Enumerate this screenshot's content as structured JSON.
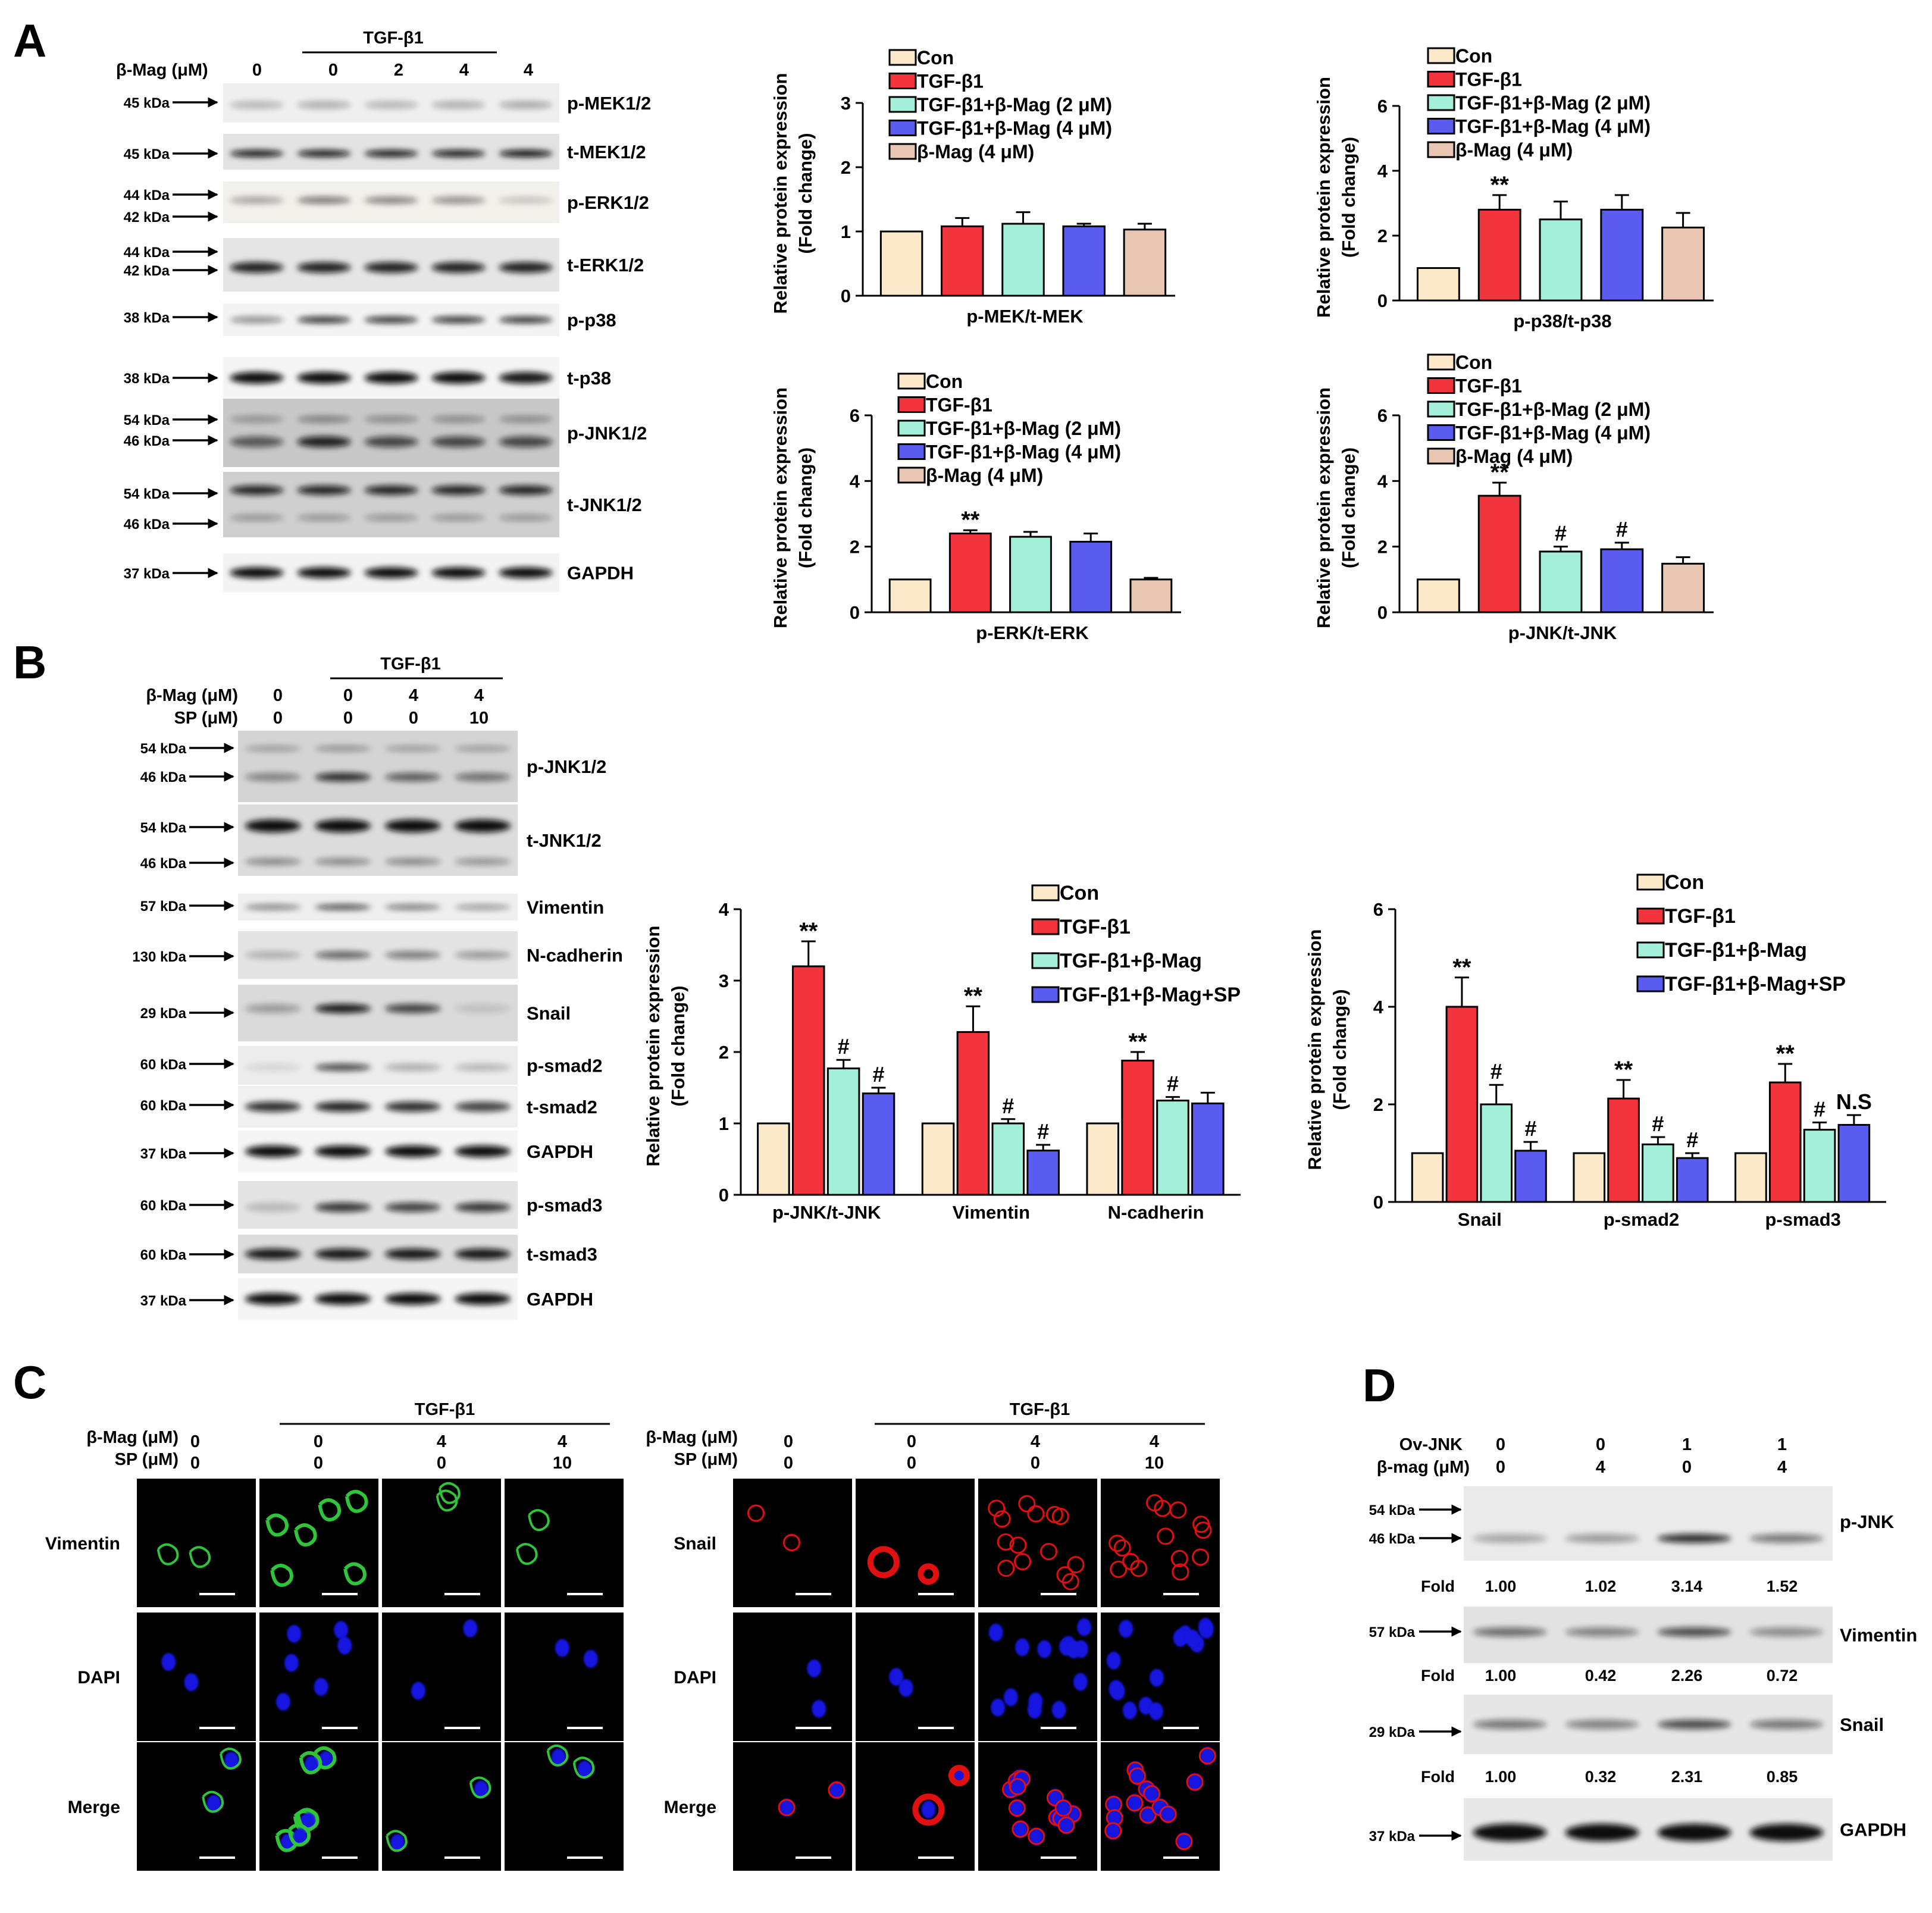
{
  "colors": {
    "con": "#FCE9C9",
    "tgf": "#F2343D",
    "mag2": "#A4EFD9",
    "mag4": "#5A5CF0",
    "magonly": "#E9C6B1",
    "merge_green": "#2FC43A",
    "blue": "#1414E0",
    "red": "#E01010"
  },
  "panel_labels": [
    "A",
    "B",
    "C",
    "D"
  ],
  "A": {
    "tgf_label": "TGF-β1",
    "mag_label": "β-Mag (μM)",
    "mag_values": [
      "0",
      "0",
      "2",
      "4",
      "4"
    ],
    "blots": [
      {
        "name": "p-MEK1/2",
        "kda": [
          "45 kDa"
        ]
      },
      {
        "name": "t-MEK1/2",
        "kda": [
          "45 kDa"
        ]
      },
      {
        "name": "p-ERK1/2",
        "kda": [
          "44 kDa",
          "42 kDa"
        ]
      },
      {
        "name": "t-ERK1/2",
        "kda": [
          "44 kDa",
          "42 kDa"
        ]
      },
      {
        "name": "p-p38",
        "kda": [
          "38 kDa"
        ]
      },
      {
        "name": "t-p38",
        "kda": [
          "38 kDa"
        ]
      },
      {
        "name": "p-JNK1/2",
        "kda": [
          "54 kDa",
          "46 kDa"
        ]
      },
      {
        "name": "t-JNK1/2",
        "kda": [
          "54 kDa",
          "46 kDa"
        ]
      },
      {
        "name": "GAPDH",
        "kda": [
          "37 kDa"
        ]
      }
    ],
    "legend": [
      "Con",
      "TGF-β1",
      "TGF-β1+β-Mag (2 μM)",
      "TGF-β1+β-Mag (4 μM)",
      "β-Mag (4 μM)"
    ],
    "ylabel": [
      "Relative protein expression",
      "(Fold change)"
    ]
  },
  "B": {
    "tgf_label": "TGF-β1",
    "mag_label": "β-Mag (μM)",
    "sp_label": "SP (μM)",
    "mag_values": [
      "0",
      "0",
      "4",
      "4"
    ],
    "sp_values": [
      "0",
      "0",
      "0",
      "10"
    ],
    "blots": [
      {
        "name": "p-JNK1/2",
        "kda": [
          "54 kDa",
          "46 kDa"
        ]
      },
      {
        "name": "t-JNK1/2",
        "kda": [
          "54 kDa",
          "46 kDa"
        ]
      },
      {
        "name": "Vimentin",
        "kda": [
          "57 kDa"
        ]
      },
      {
        "name": "N-cadherin",
        "kda": [
          "130 kDa"
        ]
      },
      {
        "name": "Snail",
        "kda": [
          "29 kDa"
        ]
      },
      {
        "name": "p-smad2",
        "kda": [
          "60 kDa"
        ]
      },
      {
        "name": "t-smad2",
        "kda": [
          "60 kDa"
        ]
      },
      {
        "name": "GAPDH",
        "kda": [
          "37 kDa"
        ]
      },
      {
        "name": "p-smad3",
        "kda": [
          "60 kDa"
        ]
      },
      {
        "name": "t-smad3",
        "kda": [
          "60 kDa"
        ]
      },
      {
        "name": "GAPDH",
        "kda": [
          "37 kDa"
        ]
      }
    ],
    "legend": [
      "Con",
      "TGF-β1",
      "TGF-β1+β-Mag",
      "TGF-β1+β-Mag+SP"
    ],
    "ylabel": [
      "Relative protein expression",
      "(Fold change)"
    ]
  },
  "C": {
    "tgf_label": "TGF-β1",
    "mag_label": "β-Mag (μM)",
    "sp_label": "SP (μM)",
    "mag_values": [
      "0",
      "0",
      "4",
      "4"
    ],
    "sp_values": [
      "0",
      "0",
      "0",
      "10"
    ],
    "rows_left": [
      "Vimentin",
      "DAPI",
      "Merge"
    ],
    "rows_right": [
      "Snail",
      "DAPI",
      "Merge"
    ]
  },
  "D": {
    "ov_label": "Ov-JNK",
    "mag_label": "β-mag (μM)",
    "ov_values": [
      "0",
      "0",
      "1",
      "1"
    ],
    "mag_values": [
      "0",
      "4",
      "0",
      "4"
    ],
    "fold_label": "Fold",
    "blots": [
      {
        "name": "p-JNK",
        "kda": [
          "54 kDa",
          "46 kDa"
        ],
        "fold": [
          "1.00",
          "1.02",
          "3.14",
          "1.52"
        ]
      },
      {
        "name": "Vimentin",
        "kda": [
          "57 kDa"
        ],
        "fold": [
          "1.00",
          "0.42",
          "2.26",
          "0.72"
        ]
      },
      {
        "name": "Snail",
        "kda": [
          "29 kDa"
        ],
        "fold": [
          "1.00",
          "0.32",
          "2.31",
          "0.85"
        ]
      },
      {
        "name": "GAPDH",
        "kda": [
          "37 kDa"
        ],
        "fold": []
      }
    ]
  },
  "chart_data": [
    {
      "id": "A1",
      "type": "bar",
      "xlabel": "p-MEK/t-MEK",
      "ylim": [
        0,
        3
      ],
      "yticks": [
        0,
        1,
        2,
        3
      ],
      "categories": [
        "Con",
        "TGF-β1",
        "TGF-β1+β-Mag (2 μM)",
        "TGF-β1+β-Mag (4 μM)",
        "β-Mag (4 μM)"
      ],
      "values": [
        1.0,
        1.08,
        1.12,
        1.08,
        1.03
      ],
      "errors": [
        0,
        0.13,
        0.18,
        0.04,
        0.09
      ],
      "annotations": [
        "",
        "",
        "",
        "",
        ""
      ]
    },
    {
      "id": "A2",
      "type": "bar",
      "xlabel": "p-p38/t-p38",
      "ylim": [
        0,
        6
      ],
      "yticks": [
        0,
        2,
        4,
        6
      ],
      "categories": [
        "Con",
        "TGF-β1",
        "TGF-β1+β-Mag (2 μM)",
        "TGF-β1+β-Mag (4 μM)",
        "β-Mag (4 μM)"
      ],
      "values": [
        1.0,
        2.8,
        2.5,
        2.8,
        2.25
      ],
      "errors": [
        0,
        0.45,
        0.55,
        0.45,
        0.45
      ],
      "annotations": [
        "",
        "**",
        "",
        "",
        ""
      ]
    },
    {
      "id": "A3",
      "type": "bar",
      "xlabel": "p-ERK/t-ERK",
      "ylim": [
        0,
        6
      ],
      "yticks": [
        0,
        2,
        4,
        6
      ],
      "categories": [
        "Con",
        "TGF-β1",
        "TGF-β1+β-Mag (2 μM)",
        "TGF-β1+β-Mag (4 μM)",
        "β-Mag (4 μM)"
      ],
      "values": [
        1.0,
        2.4,
        2.3,
        2.15,
        1.0
      ],
      "errors": [
        0,
        0.1,
        0.15,
        0.25,
        0.05
      ],
      "annotations": [
        "",
        "**",
        "",
        "",
        ""
      ]
    },
    {
      "id": "A4",
      "type": "bar",
      "xlabel": "p-JNK/t-JNK",
      "ylim": [
        0,
        6
      ],
      "yticks": [
        0,
        2,
        4,
        6
      ],
      "categories": [
        "Con",
        "TGF-β1",
        "TGF-β1+β-Mag (2 μM)",
        "TGF-β1+β-Mag (4 μM)",
        "β-Mag (4 μM)"
      ],
      "values": [
        1.0,
        3.55,
        1.85,
        1.92,
        1.48
      ],
      "errors": [
        0,
        0.4,
        0.15,
        0.2,
        0.2
      ],
      "annotations": [
        "",
        "**",
        "#",
        "#",
        ""
      ]
    },
    {
      "id": "B1",
      "type": "bar",
      "ylim": [
        0,
        4
      ],
      "yticks": [
        0,
        1,
        2,
        3,
        4
      ],
      "categories": [
        "p-JNK/t-JNK",
        "Vimentin",
        "N-cadherin"
      ],
      "series": [
        {
          "name": "Con",
          "values": [
            1.0,
            1.0,
            1.0
          ],
          "errors": [
            0,
            0,
            0
          ],
          "annotations": [
            "",
            "",
            ""
          ]
        },
        {
          "name": "TGF-β1",
          "values": [
            3.2,
            2.28,
            1.88
          ],
          "errors": [
            0.35,
            0.36,
            0.12
          ],
          "annotations": [
            "**",
            "**",
            "**"
          ]
        },
        {
          "name": "TGF-β1+β-Mag",
          "values": [
            1.77,
            1.0,
            1.32
          ],
          "errors": [
            0.12,
            0.06,
            0.05
          ],
          "annotations": [
            "#",
            "#",
            "#"
          ]
        },
        {
          "name": "TGF-β1+β-Mag+SP",
          "values": [
            1.42,
            0.62,
            1.28
          ],
          "errors": [
            0.08,
            0.08,
            0.15
          ],
          "annotations": [
            "#",
            "#",
            ""
          ]
        }
      ]
    },
    {
      "id": "B2",
      "type": "bar",
      "ylim": [
        0,
        6
      ],
      "yticks": [
        0,
        2,
        4,
        6
      ],
      "categories": [
        "Snail",
        "p-smad2",
        "p-smad3"
      ],
      "series": [
        {
          "name": "Con",
          "values": [
            1.0,
            1.0,
            1.0
          ],
          "errors": [
            0,
            0,
            0
          ],
          "annotations": [
            "",
            "",
            ""
          ]
        },
        {
          "name": "TGF-β1",
          "values": [
            4.0,
            2.12,
            2.45
          ],
          "errors": [
            0.6,
            0.38,
            0.38
          ],
          "annotations": [
            "**",
            "**",
            "**"
          ]
        },
        {
          "name": "TGF-β1+β-Mag",
          "values": [
            2.0,
            1.18,
            1.48
          ],
          "errors": [
            0.4,
            0.15,
            0.15
          ],
          "annotations": [
            "#",
            "#",
            "#"
          ]
        },
        {
          "name": "TGF-β1+β-Mag+SP",
          "values": [
            1.05,
            0.9,
            1.58
          ],
          "errors": [
            0.18,
            0.1,
            0.2
          ],
          "annotations": [
            "#",
            "#",
            "N.S"
          ]
        }
      ]
    }
  ]
}
